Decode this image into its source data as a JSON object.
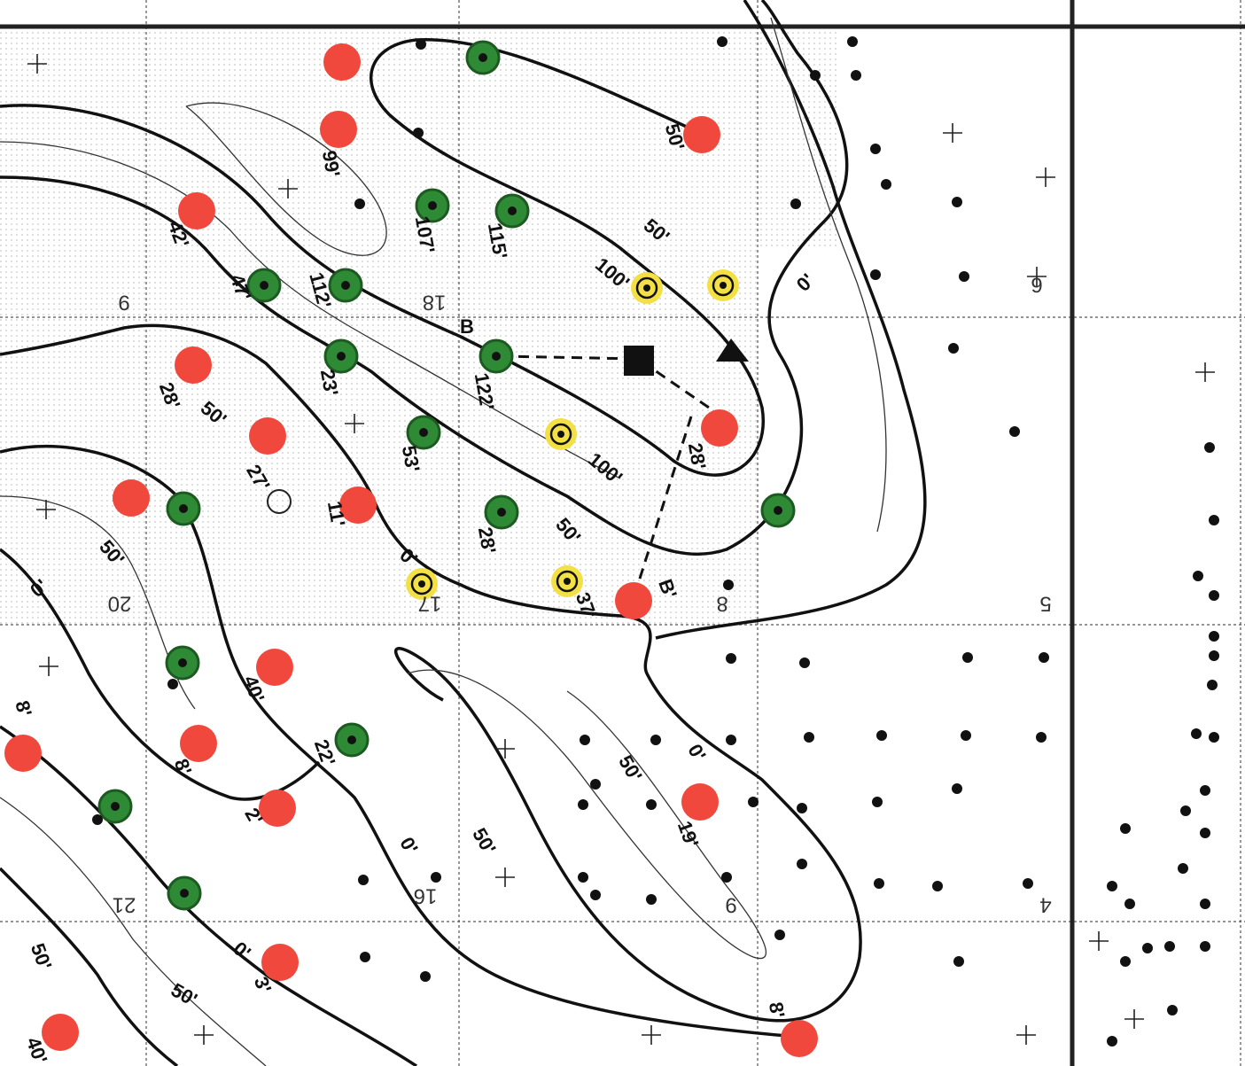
{
  "map": {
    "sections": [
      "9",
      "18",
      "6",
      "20",
      "17",
      "8",
      "5",
      "21",
      "16",
      "9",
      "4"
    ],
    "well_labels": [
      "99'",
      "42'",
      "47'",
      "112'",
      "107'",
      "115'",
      "23'",
      "122'",
      "53'",
      "28'",
      "11'",
      "27'",
      "28'",
      "28'",
      "37'",
      "40'",
      "8'",
      "2'",
      "22'",
      "8'",
      "3'",
      "19'",
      "8'",
      "40'"
    ],
    "contour_labels": [
      "50'",
      "50'",
      "100'",
      "0'",
      "50'",
      "100'",
      "50'",
      "0'",
      "50'",
      "0'",
      "50'",
      "0'",
      "50'",
      "0'",
      "0'",
      "50'",
      "50'"
    ],
    "cross_section": {
      "start": "B",
      "end": "B'"
    }
  }
}
